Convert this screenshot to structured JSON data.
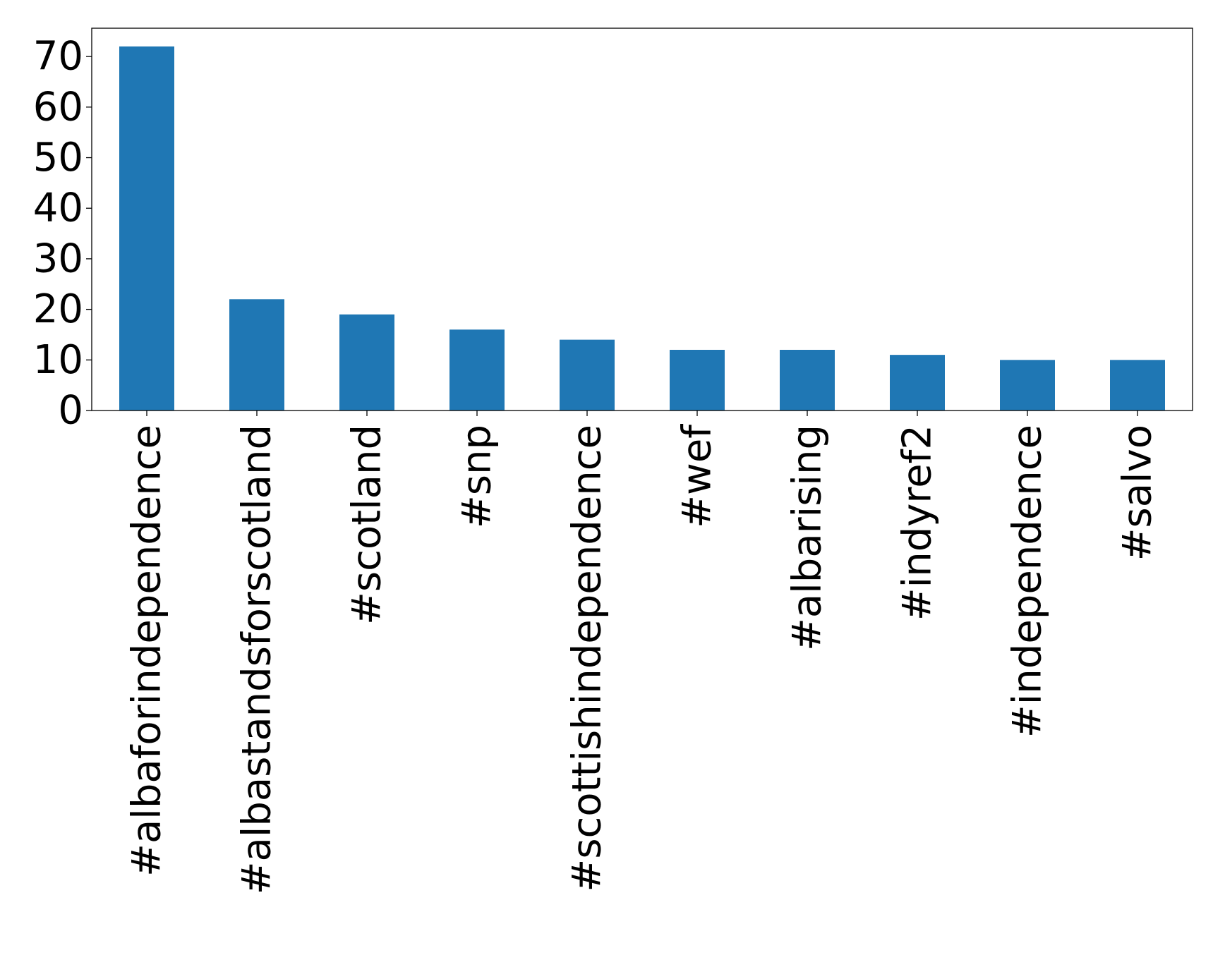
{
  "chart_data": {
    "type": "bar",
    "title": "",
    "xlabel": "",
    "ylabel": "",
    "categories": [
      "#albaforindependence",
      "#albastandsforscotland",
      "#scotland",
      "#snp",
      "#scottishindependence",
      "#wef",
      "#albarising",
      "#indyref2",
      "#independence",
      "#salvo"
    ],
    "values": [
      72,
      22,
      19,
      16,
      14,
      12,
      12,
      11,
      10,
      10
    ],
    "ylim": [
      0,
      75.6
    ],
    "yticks": [
      0,
      10,
      20,
      30,
      40,
      50,
      60,
      70
    ],
    "grid": false,
    "legend": "none",
    "bar_color": "#1f77b4"
  }
}
